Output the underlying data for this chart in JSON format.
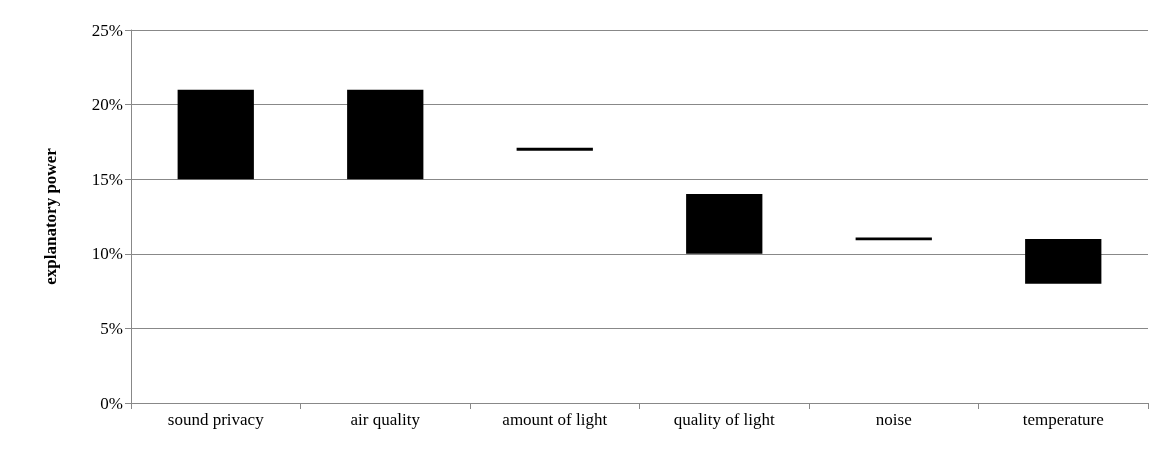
{
  "chart_data": {
    "type": "bar",
    "ylabel": "explanatory power",
    "categories": [
      "sound privacy",
      "air quality",
      "amount of light",
      "quality of light",
      "noise",
      "temperature"
    ],
    "base": [
      15,
      15,
      16.9,
      10,
      10.9,
      8
    ],
    "values": [
      6,
      6,
      0.2,
      4,
      0.2,
      3
    ],
    "color": "#000000",
    "ylim": [
      0,
      25
    ],
    "yticks": [
      {
        "value": 0,
        "label": "0%"
      },
      {
        "value": 5,
        "label": "5%"
      },
      {
        "value": 10,
        "label": "10%"
      },
      {
        "value": 15,
        "label": "15%"
      },
      {
        "value": 20,
        "label": "20%"
      },
      {
        "value": 25,
        "label": "25%"
      }
    ],
    "grid": "y"
  }
}
